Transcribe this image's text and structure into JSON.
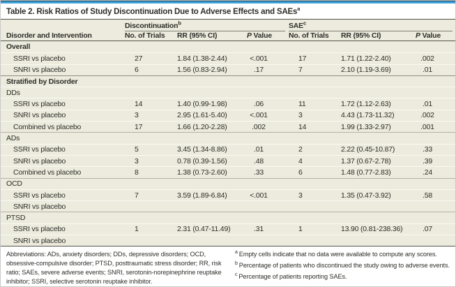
{
  "colors": {
    "accent_blue": "#3fa3da",
    "table_background": "#ecebdd",
    "rule_dark": "#55544c"
  },
  "table": {
    "title": "Table 2. Risk Ratios of Study Discontinuation Due to Adverse Effects and SAEs",
    "title_sup": "a",
    "col_groups": [
      {
        "label": "Discontinuation",
        "sup": "b"
      },
      {
        "label": "SAE",
        "sup": "c"
      }
    ],
    "columns": {
      "intervention": "Disorder and Intervention",
      "trials": "No. of Trials",
      "rr": "RR (95% CI)",
      "p_italic": "P",
      "p_rest": " Value"
    },
    "rows": [
      {
        "type": "section",
        "sep": "none",
        "label": "Overall"
      },
      {
        "type": "data",
        "sep": "white",
        "label": "SSRI vs placebo",
        "d_trials": "27",
        "d_rr": "1.84 (1.38-2.44)",
        "d_p": "<.001",
        "s_trials": "17",
        "s_rr": "1.71 (1.22-2.40)",
        "s_p": ".002"
      },
      {
        "type": "data",
        "sep": "white",
        "label": "SNRI vs placebo",
        "d_trials": "6",
        "d_rr": "1.56 (0.83-2.94)",
        "d_p": ".17",
        "s_trials": "7",
        "s_rr": "2.10 (1.19-3.69)",
        "s_p": ".01"
      },
      {
        "type": "section",
        "sep": "dark",
        "label": "Stratified by Disorder"
      },
      {
        "type": "sub",
        "sep": "white",
        "label": "DDs"
      },
      {
        "type": "data",
        "sep": "white",
        "label": "SSRI vs placebo",
        "d_trials": "14",
        "d_rr": "1.40 (0.99-1.98)",
        "d_p": ".06",
        "s_trials": "11",
        "s_rr": "1.72 (1.12-2.63)",
        "s_p": ".01"
      },
      {
        "type": "data",
        "sep": "white",
        "label": "SNRI vs placebo",
        "d_trials": "3",
        "d_rr": "2.95 (1.61-5.40)",
        "d_p": "<.001",
        "s_trials": "3",
        "s_rr": "4.43 (1.73-11.32)",
        "s_p": ".002"
      },
      {
        "type": "data",
        "sep": "white",
        "label": "Combined vs placebo",
        "d_trials": "17",
        "d_rr": "1.66 (1.20-2.28)",
        "d_p": ".002",
        "s_trials": "14",
        "s_rr": "1.99 (1.33-2.97)",
        "s_p": ".001"
      },
      {
        "type": "sub",
        "sep": "gray",
        "label": "ADs"
      },
      {
        "type": "data",
        "sep": "white",
        "label": "SSRI vs placebo",
        "d_trials": "5",
        "d_rr": "3.45 (1.34-8.86)",
        "d_p": ".01",
        "s_trials": "2",
        "s_rr": "2.22 (0.45-10.87)",
        "s_p": ".33"
      },
      {
        "type": "data",
        "sep": "white",
        "label": "SNRI vs placebo",
        "d_trials": "3",
        "d_rr": "0.78 (0.39-1.56)",
        "d_p": ".48",
        "s_trials": "4",
        "s_rr": "1.37 (0.67-2.78)",
        "s_p": ".39"
      },
      {
        "type": "data",
        "sep": "white",
        "label": "Combined vs placebo",
        "d_trials": "8",
        "d_rr": "1.38 (0.73-2.60)",
        "d_p": ".33",
        "s_trials": "6",
        "s_rr": "1.48 (0.77-2.83)",
        "s_p": ".24"
      },
      {
        "type": "sub",
        "sep": "gray",
        "label": "OCD"
      },
      {
        "type": "data",
        "sep": "white",
        "label": "SSRI vs placebo",
        "d_trials": "7",
        "d_rr": "3.59 (1.89-6.84)",
        "d_p": "<.001",
        "s_trials": "3",
        "s_rr": "1.35 (0.47-3.92)",
        "s_p": ".58"
      },
      {
        "type": "data",
        "sep": "white",
        "label": "SNRI vs placebo",
        "d_trials": "",
        "d_rr": "",
        "d_p": "",
        "s_trials": "",
        "s_rr": "",
        "s_p": ""
      },
      {
        "type": "sub",
        "sep": "gray",
        "label": "PTSD"
      },
      {
        "type": "data",
        "sep": "white",
        "label": "SSRI vs placebo",
        "d_trials": "1",
        "d_rr": "2.31 (0.47-11.49)",
        "d_p": ".31",
        "s_trials": "1",
        "s_rr": "13.90 (0.81-238.36)",
        "s_p": ".07"
      },
      {
        "type": "data",
        "sep": "white",
        "label": "SNRI vs placebo",
        "d_trials": "",
        "d_rr": "",
        "d_p": "",
        "s_trials": "",
        "s_rr": "",
        "s_p": ""
      }
    ]
  },
  "footnotes": {
    "abbreviations": "Abbreviations: ADs, anxiety disorders; DDs, depressive disorders; OCD, obsessive-compulsive disorder; PTSD, posttraumatic stress disorder; RR, risk ratio; SAEs, severe adverse events; SNRI, serotonin-norepinephrine reuptake inhibitor; SSRI, selective serotonin reuptake inhibitor.",
    "notes": [
      {
        "sup": "a",
        "text": "Empty cells indicate that no data were available to compute any scores."
      },
      {
        "sup": "b",
        "text": "Percentage of patients who discontinued the study owing to adverse events."
      },
      {
        "sup": "c",
        "text": "Percentage of patients reporting SAEs."
      }
    ]
  }
}
